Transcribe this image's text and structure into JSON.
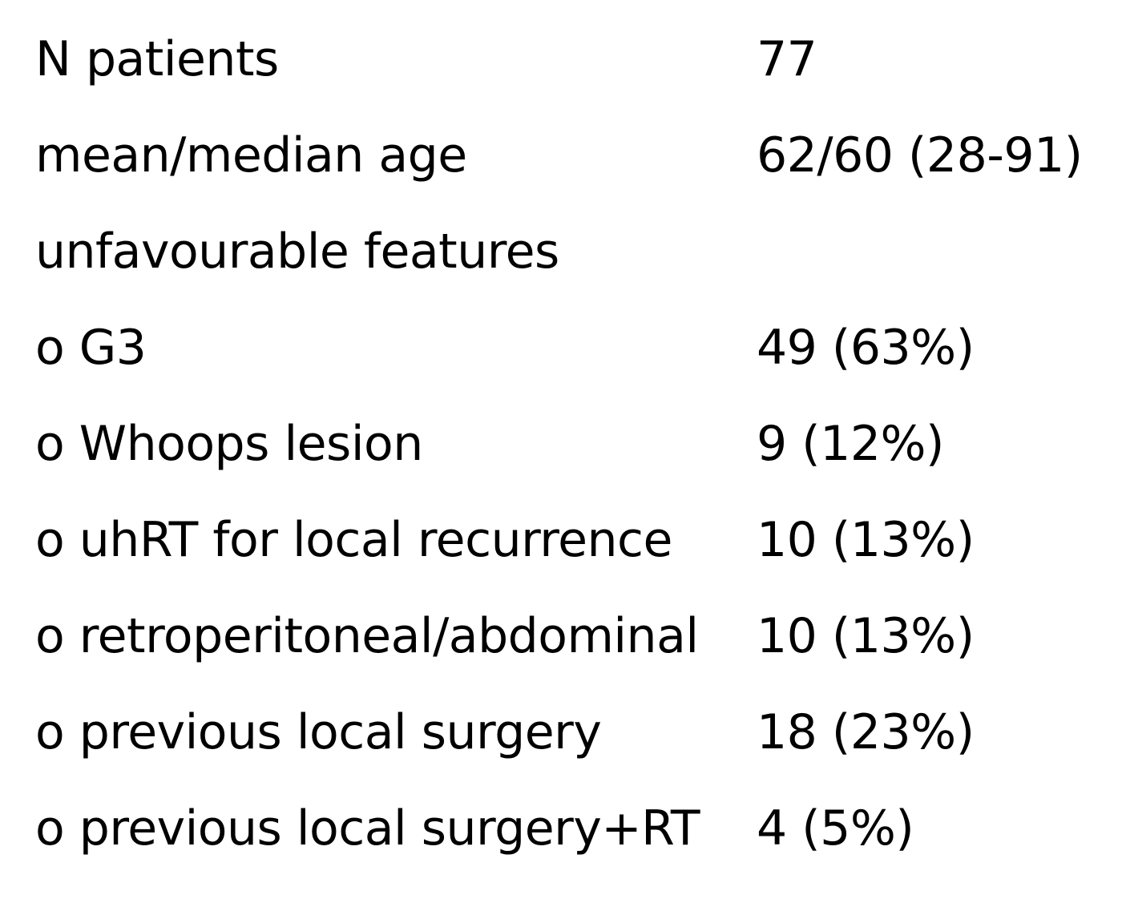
{
  "rows": [
    {
      "label": "N patients",
      "value": "77"
    },
    {
      "label": "mean/median age",
      "value": "62/60 (28-91)"
    },
    {
      "label": "unfavourable features",
      "value": ""
    },
    {
      "label": "o G3",
      "value": "49 (63%)"
    },
    {
      "label": "o Whoops lesion",
      "value": "9 (12%)"
    },
    {
      "label": "o uhRT for local recurrence",
      "value": "10 (13%)"
    },
    {
      "label": "o retroperitoneal/abdominal",
      "value": "10 (13%)"
    },
    {
      "label": "o previous local surgery",
      "value": "18 (23%)"
    },
    {
      "label": "o previous local surgery+RT",
      "value": "4 (5%)"
    }
  ]
}
